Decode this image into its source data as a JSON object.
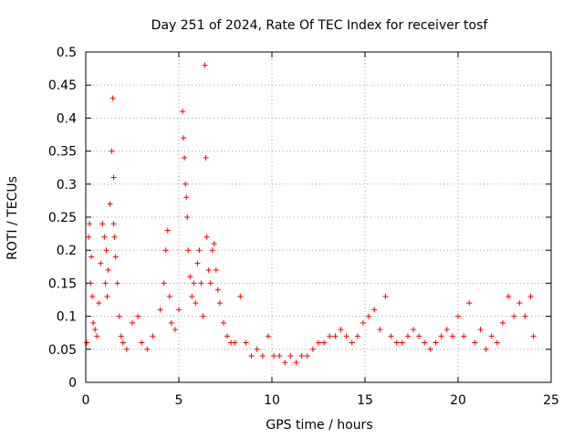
{
  "chart_data": {
    "type": "scatter",
    "title": "Day 251 of 2024, Rate Of TEC Index for receiver tosf",
    "xlabel": "GPS time / hours",
    "ylabel": "ROTI / TECUs",
    "xlim": [
      0,
      25
    ],
    "ylim": [
      0,
      0.5
    ],
    "xticks": [
      0,
      5,
      10,
      15,
      20,
      25
    ],
    "xtick_labels": [
      "0",
      "5",
      "10",
      "15",
      "20",
      "25"
    ],
    "yticks": [
      0,
      0.05,
      0.1,
      0.15,
      0.2,
      0.25,
      0.3,
      0.35,
      0.4,
      0.45,
      0.5
    ],
    "ytick_labels": [
      "0",
      "0.05",
      "0.1",
      "0.15",
      "0.2",
      "0.25",
      "0.3",
      "0.35",
      "0.4",
      "0.45",
      "0.5"
    ],
    "grid": true,
    "marker": "+",
    "color": "#ff0000",
    "series": [
      {
        "name": "ROTI",
        "x": [
          0.05,
          0.15,
          0.2,
          0.25,
          0.3,
          0.35,
          0.4,
          0.5,
          0.6,
          0.7,
          0.8,
          0.9,
          1.0,
          1.05,
          1.1,
          1.15,
          1.2,
          1.3,
          1.4,
          1.45,
          1.5,
          1.5,
          1.55,
          1.6,
          1.7,
          1.8,
          1.9,
          2.0,
          2.2,
          2.5,
          2.8,
          3.0,
          3.3,
          3.6,
          4.0,
          4.2,
          4.3,
          4.4,
          4.5,
          4.6,
          4.8,
          5.0,
          5.2,
          5.25,
          5.3,
          5.35,
          5.4,
          5.45,
          5.5,
          5.6,
          5.7,
          5.8,
          5.9,
          6.0,
          6.1,
          6.2,
          6.3,
          6.4,
          6.45,
          6.5,
          6.6,
          6.7,
          6.8,
          6.9,
          7.0,
          7.1,
          7.2,
          7.4,
          7.6,
          7.8,
          8.0,
          8.3,
          8.6,
          8.9,
          9.2,
          9.5,
          9.8,
          10.1,
          10.4,
          10.7,
          11.0,
          11.3,
          11.6,
          11.9,
          12.2,
          12.5,
          12.8,
          13.1,
          13.4,
          13.7,
          14.0,
          14.3,
          14.6,
          14.9,
          15.2,
          15.5,
          15.8,
          16.1,
          16.4,
          16.7,
          17.0,
          17.3,
          17.6,
          17.9,
          18.2,
          18.5,
          18.8,
          19.1,
          19.4,
          19.7,
          20.0,
          20.3,
          20.6,
          20.9,
          21.2,
          21.5,
          21.8,
          22.1,
          22.4,
          22.7,
          23.0,
          23.3,
          23.6,
          23.9,
          24.05
        ],
        "y": [
          0.06,
          0.22,
          0.24,
          0.15,
          0.19,
          0.13,
          0.09,
          0.08,
          0.07,
          0.12,
          0.18,
          0.24,
          0.22,
          0.15,
          0.2,
          0.13,
          0.17,
          0.27,
          0.35,
          0.43,
          0.31,
          0.24,
          0.22,
          0.19,
          0.15,
          0.1,
          0.07,
          0.06,
          0.05,
          0.09,
          0.1,
          0.06,
          0.05,
          0.07,
          0.11,
          0.15,
          0.2,
          0.23,
          0.13,
          0.09,
          0.08,
          0.11,
          0.41,
          0.37,
          0.34,
          0.3,
          0.28,
          0.25,
          0.2,
          0.16,
          0.13,
          0.15,
          0.12,
          0.18,
          0.2,
          0.15,
          0.1,
          0.48,
          0.34,
          0.22,
          0.17,
          0.15,
          0.2,
          0.21,
          0.17,
          0.14,
          0.12,
          0.09,
          0.07,
          0.06,
          0.06,
          0.13,
          0.06,
          0.04,
          0.05,
          0.04,
          0.07,
          0.04,
          0.04,
          0.03,
          0.04,
          0.03,
          0.04,
          0.04,
          0.05,
          0.06,
          0.06,
          0.07,
          0.07,
          0.08,
          0.07,
          0.06,
          0.07,
          0.09,
          0.1,
          0.11,
          0.08,
          0.13,
          0.07,
          0.06,
          0.06,
          0.07,
          0.08,
          0.07,
          0.06,
          0.05,
          0.06,
          0.07,
          0.08,
          0.07,
          0.1,
          0.07,
          0.12,
          0.06,
          0.08,
          0.05,
          0.07,
          0.06,
          0.09,
          0.13,
          0.1,
          0.12,
          0.1,
          0.13,
          0.07
        ]
      }
    ]
  }
}
